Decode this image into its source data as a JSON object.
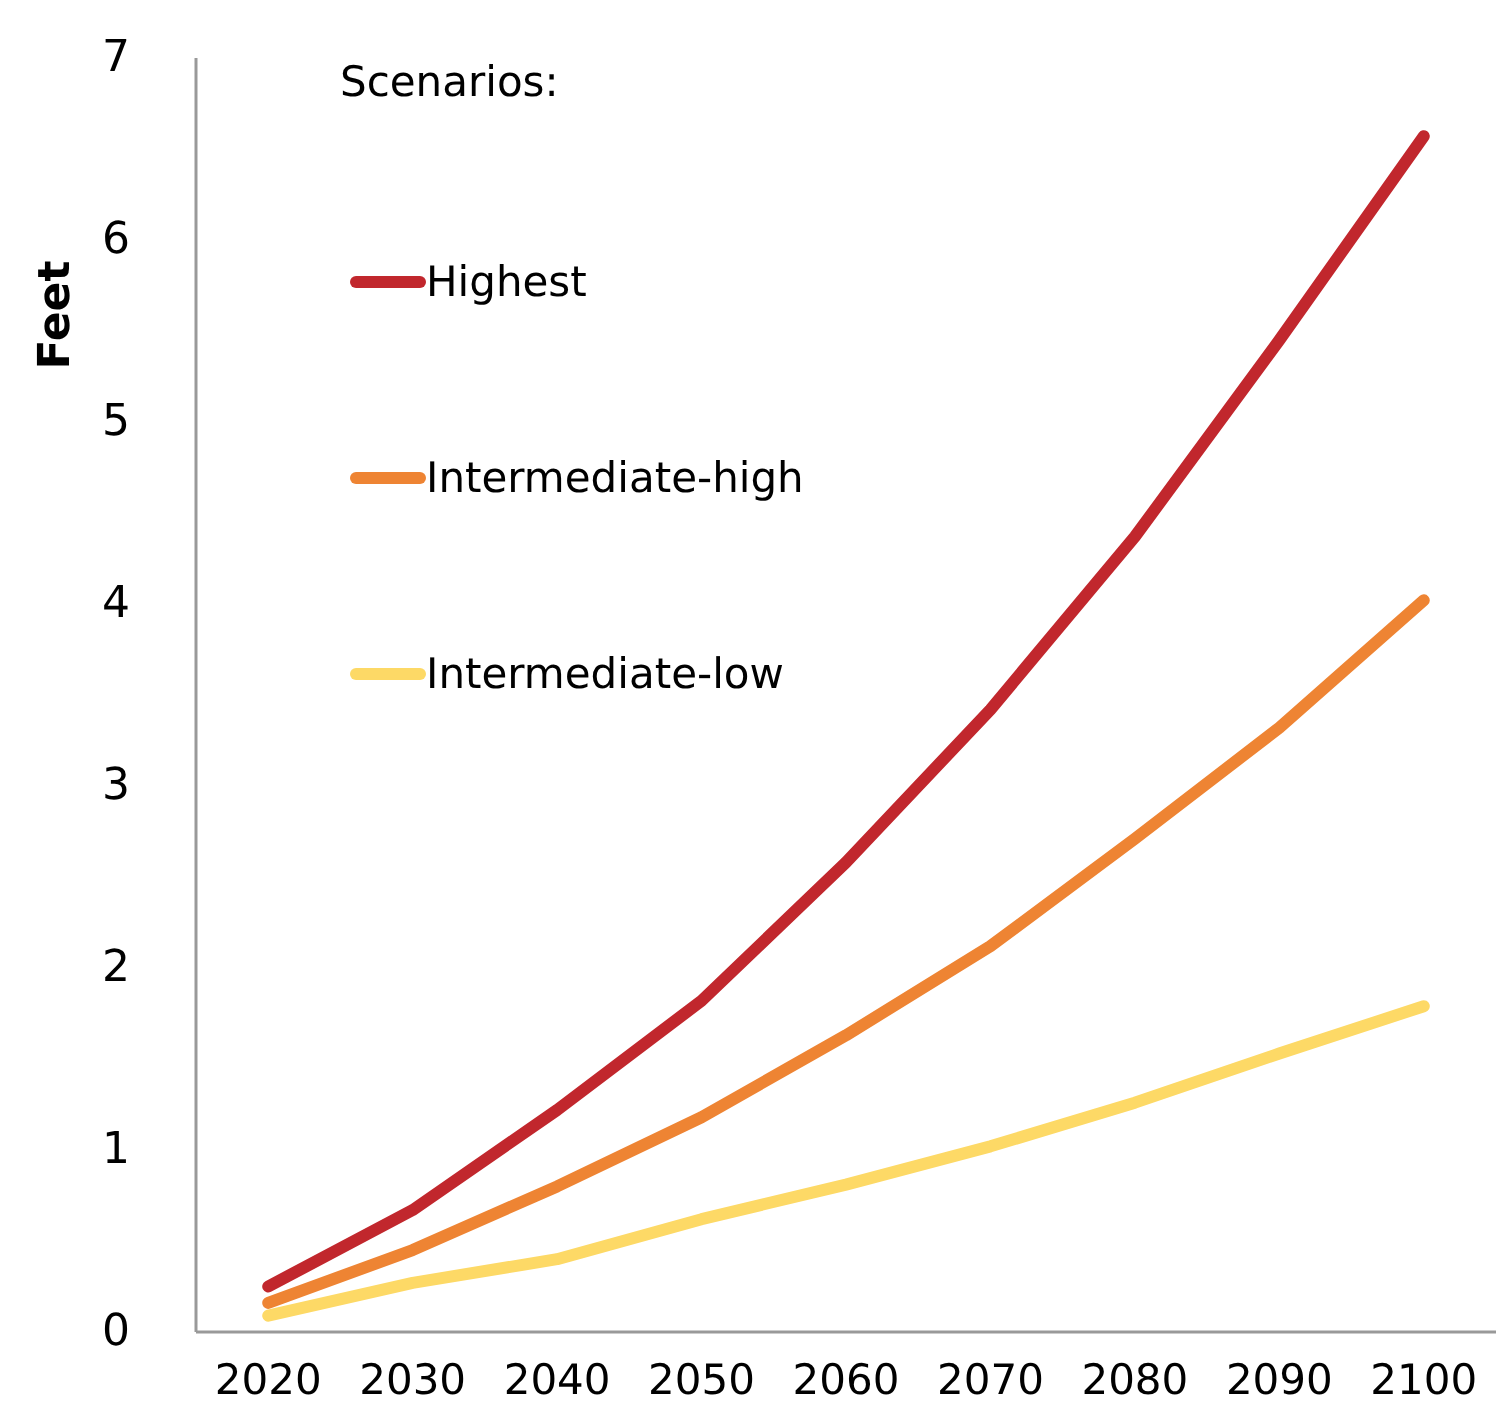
{
  "chart_data": {
    "type": "line",
    "ylabel": "Feet",
    "legend_title": "Scenarios:",
    "legend": "top left",
    "grid": false,
    "x": [
      2020,
      2030,
      2040,
      2050,
      2060,
      2070,
      2080,
      2090,
      2100
    ],
    "xlim": [
      2015,
      2105
    ],
    "xticks": [
      2020,
      2030,
      2040,
      2050,
      2060,
      2070,
      2080,
      2090,
      2100
    ],
    "ylim": [
      0,
      7
    ],
    "yticks": [
      0,
      1,
      2,
      3,
      4,
      5,
      6,
      7
    ],
    "series": [
      {
        "name": "Highest",
        "color": "#c1272d",
        "values": [
          0.25,
          0.67,
          1.22,
          1.82,
          2.58,
          3.42,
          4.37,
          5.45,
          6.57
        ]
      },
      {
        "name": "Intermediate-high",
        "color": "#ee8433",
        "values": [
          0.16,
          0.45,
          0.8,
          1.18,
          1.63,
          2.12,
          2.71,
          3.32,
          4.02
        ]
      },
      {
        "name": "Intermediate-low",
        "color": "#fdd966",
        "values": [
          0.09,
          0.27,
          0.4,
          0.62,
          0.81,
          1.02,
          1.26,
          1.53,
          1.79
        ]
      }
    ]
  }
}
